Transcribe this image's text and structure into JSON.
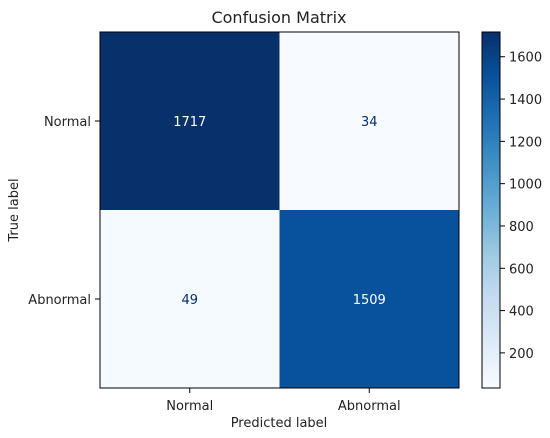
{
  "chart_data": {
    "type": "heatmap",
    "title": "Confusion Matrix",
    "xlabel": "Predicted label",
    "ylabel": "True label",
    "x_categories": [
      "Normal",
      "Abnormal"
    ],
    "y_categories": [
      "Normal",
      "Abnormal"
    ],
    "values": [
      [
        1717,
        34
      ],
      [
        49,
        1509
      ]
    ],
    "colormap": "Blues",
    "vmin": 34,
    "vmax": 1717,
    "colorbar_ticks": [
      200,
      400,
      600,
      800,
      1000,
      1200,
      1400,
      1600
    ],
    "colorbar_tick_labels": [
      "200",
      "400",
      "600",
      "800",
      "1000",
      "1200",
      "1400",
      "1600"
    ],
    "colors": {
      "blues_stops": [
        "#f7fbff",
        "#deebf7",
        "#c6dbef",
        "#9ecae1",
        "#6baed6",
        "#4292c6",
        "#2171b5",
        "#08519c",
        "#08306b"
      ],
      "light_text": "#ffffff",
      "dark_text": "#08306b"
    }
  }
}
